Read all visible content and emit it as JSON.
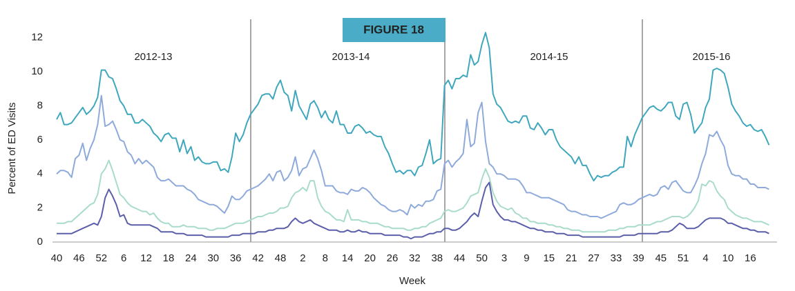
{
  "chart_data": {
    "type": "line",
    "badge": "FIGURE 18",
    "season_labels": [
      "2012-13",
      "2013-14",
      "2014-15",
      "2015-16"
    ],
    "y_label": "Percent of ED Visits",
    "x_label": "Week",
    "ylim": [
      0,
      13
    ],
    "yticks": [
      0,
      2,
      4,
      6,
      8,
      10,
      12
    ],
    "grid": false,
    "categories": [
      "40",
      null,
      null,
      null,
      null,
      null,
      "46",
      null,
      null,
      null,
      null,
      null,
      "52",
      null,
      null,
      null,
      null,
      null,
      "6",
      null,
      null,
      null,
      null,
      null,
      "12",
      null,
      null,
      null,
      null,
      null,
      "18",
      null,
      null,
      null,
      null,
      null,
      "24",
      null,
      null,
      null,
      null,
      null,
      "30",
      null,
      null,
      null,
      null,
      null,
      "36",
      null,
      null,
      null,
      null,
      null,
      "42",
      null,
      null,
      null,
      null,
      null,
      "48",
      null,
      null,
      null,
      null,
      null,
      "2",
      null,
      null,
      null,
      null,
      null,
      "8",
      null,
      null,
      null,
      null,
      null,
      "14",
      null,
      null,
      null,
      null,
      null,
      "20",
      null,
      null,
      null,
      null,
      null,
      "26",
      null,
      null,
      null,
      null,
      null,
      "32",
      null,
      null,
      null,
      null,
      null,
      "38",
      null,
      null,
      null,
      null,
      null,
      "44",
      null,
      null,
      null,
      null,
      null,
      "50",
      null,
      null,
      null,
      null,
      null,
      "3",
      null,
      null,
      null,
      null,
      null,
      "9",
      null,
      null,
      null,
      null,
      null,
      "15",
      null,
      null,
      null,
      null,
      null,
      "21",
      null,
      null,
      null,
      null,
      null,
      "27",
      null,
      null,
      null,
      null,
      null,
      "33",
      null,
      null,
      null,
      null,
      null,
      "39",
      null,
      null,
      null,
      null,
      null,
      "45",
      null,
      null,
      null,
      null,
      null,
      "51",
      null,
      null,
      null,
      null,
      null,
      "4",
      null,
      null,
      null,
      null,
      null,
      "10",
      null,
      null,
      null,
      null,
      null,
      "16",
      null,
      null,
      null,
      null,
      null
    ],
    "series": [
      {
        "color": "#3fa7bd",
        "values": [
          7.2,
          7.6,
          6.9,
          6.9,
          7.0,
          7.3,
          7.6,
          7.9,
          7.5,
          7.7,
          8.0,
          8.5,
          10.1,
          10.1,
          9.7,
          9.6,
          9.0,
          8.3,
          8.0,
          7.5,
          7.5,
          7.0,
          7.0,
          7.2,
          7.0,
          6.8,
          6.4,
          6.2,
          5.9,
          6.3,
          6.4,
          6.1,
          6.1,
          5.3,
          6.0,
          5.2,
          5.6,
          4.8,
          5.0,
          4.7,
          4.6,
          4.6,
          4.7,
          4.7,
          4.2,
          4.3,
          4.1,
          5.0,
          6.4,
          5.9,
          6.3,
          7.0,
          7.5,
          7.8,
          8.1,
          8.6,
          8.7,
          8.7,
          8.4,
          9.1,
          9.5,
          8.8,
          8.6,
          7.7,
          8.9,
          8.0,
          7.6,
          7.2,
          8.1,
          8.3,
          7.9,
          7.3,
          7.7,
          7.2,
          7.0,
          7.7,
          6.9,
          6.9,
          6.4,
          6.4,
          6.8,
          6.9,
          6.7,
          6.4,
          6.5,
          6.3,
          6.2,
          6.2,
          5.6,
          5.2,
          4.6,
          4.1,
          4.2,
          4.0,
          4.2,
          4.2,
          3.9,
          4.4,
          4.5,
          5.2,
          6.0,
          4.6,
          4.8,
          4.9,
          9.2,
          9.5,
          9.0,
          9.6,
          9.6,
          9.8,
          9.7,
          11.0,
          10.4,
          10.6,
          11.6,
          12.3,
          11.4,
          8.7,
          8.1,
          7.9,
          7.5,
          7.1,
          7.0,
          7.1,
          7.0,
          7.4,
          7.4,
          6.7,
          6.6,
          7.0,
          6.7,
          6.3,
          6.6,
          6.6,
          6.0,
          5.6,
          5.4,
          5.2,
          5.0,
          4.6,
          5.0,
          4.5,
          4.5,
          4.0,
          3.6,
          3.9,
          3.8,
          3.9,
          3.9,
          4.1,
          4.2,
          4.4,
          4.4,
          6.2,
          5.6,
          6.3,
          6.8,
          7.3,
          7.6,
          7.9,
          8.0,
          7.8,
          7.7,
          7.9,
          8.2,
          8.2,
          7.4,
          7.2,
          8.1,
          8.2,
          7.5,
          6.4,
          6.7,
          7.0,
          7.9,
          8.4,
          10.1,
          10.2,
          10.1,
          9.9,
          9.1,
          8.1,
          7.7,
          7.4,
          7.0,
          6.8,
          6.9,
          6.6,
          6.5,
          6.6,
          6.2,
          5.7
        ]
      },
      {
        "color": "#8eaadb",
        "values": [
          4.0,
          4.2,
          4.2,
          4.1,
          3.8,
          4.9,
          5.1,
          5.8,
          4.8,
          5.5,
          6.0,
          6.9,
          8.6,
          6.8,
          6.9,
          7.1,
          6.6,
          6.0,
          5.9,
          5.3,
          5.1,
          4.6,
          4.9,
          4.6,
          4.8,
          4.6,
          4.4,
          3.8,
          3.6,
          3.6,
          3.7,
          3.5,
          3.3,
          3.3,
          3.3,
          3.1,
          3.0,
          2.8,
          2.5,
          2.4,
          2.3,
          2.2,
          2.2,
          2.1,
          1.9,
          1.7,
          2.1,
          2.7,
          2.5,
          2.5,
          2.7,
          3.0,
          3.1,
          3.2,
          3.3,
          3.5,
          3.7,
          4.0,
          3.6,
          4.1,
          4.2,
          3.6,
          3.8,
          4.2,
          5.0,
          3.9,
          4.3,
          4.4,
          4.9,
          5.4,
          4.9,
          4.2,
          3.3,
          3.3,
          3.3,
          3.0,
          2.9,
          2.9,
          2.8,
          3.1,
          3.0,
          3.0,
          3.2,
          3.1,
          2.9,
          2.6,
          2.4,
          2.2,
          2.1,
          1.9,
          1.8,
          1.8,
          1.9,
          1.8,
          1.6,
          2.2,
          2.0,
          2.2,
          2.1,
          2.4,
          2.4,
          2.5,
          3.0,
          3.1,
          4.6,
          4.8,
          4.4,
          4.7,
          4.9,
          5.2,
          7.2,
          5.6,
          5.8,
          7.6,
          8.2,
          5.9,
          4.6,
          4.4,
          4.0,
          4.0,
          3.9,
          3.7,
          3.7,
          3.7,
          3.6,
          3.3,
          2.9,
          2.9,
          2.8,
          2.7,
          2.6,
          2.6,
          2.6,
          2.5,
          2.4,
          2.3,
          2.2,
          1.9,
          1.8,
          1.8,
          1.7,
          1.6,
          1.6,
          1.5,
          1.5,
          1.5,
          1.4,
          1.5,
          1.6,
          1.7,
          1.8,
          2.2,
          2.3,
          2.2,
          2.2,
          2.3,
          2.5,
          2.6,
          2.7,
          2.8,
          2.7,
          2.8,
          3.2,
          3.3,
          3.1,
          3.5,
          3.6,
          3.3,
          3.0,
          2.9,
          2.9,
          3.3,
          3.8,
          4.6,
          5.2,
          6.3,
          6.2,
          6.5,
          6.0,
          5.6,
          4.5,
          4.0,
          3.9,
          3.9,
          3.7,
          3.7,
          3.4,
          3.4,
          3.2,
          3.2,
          3.2,
          3.1
        ]
      },
      {
        "color": "#a8dcc9",
        "values": [
          1.1,
          1.1,
          1.1,
          1.2,
          1.2,
          1.4,
          1.6,
          1.8,
          2.0,
          2.2,
          2.3,
          2.8,
          4.0,
          4.3,
          4.8,
          4.2,
          3.5,
          2.8,
          2.6,
          2.3,
          2.1,
          2.0,
          1.9,
          1.8,
          1.8,
          1.6,
          1.7,
          1.4,
          1.2,
          1.1,
          1.1,
          0.9,
          0.9,
          0.9,
          1.0,
          0.9,
          0.9,
          0.9,
          0.8,
          0.8,
          0.8,
          0.7,
          0.7,
          0.8,
          0.8,
          0.8,
          0.9,
          1.0,
          1.1,
          1.1,
          1.1,
          1.2,
          1.3,
          1.4,
          1.5,
          1.5,
          1.6,
          1.7,
          1.7,
          1.8,
          2.0,
          2.0,
          2.1,
          2.6,
          2.9,
          3.0,
          3.2,
          3.0,
          3.6,
          3.6,
          2.6,
          2.1,
          1.8,
          1.7,
          1.5,
          1.3,
          1.3,
          1.2,
          1.9,
          1.3,
          1.3,
          1.3,
          1.2,
          1.2,
          1.1,
          1.1,
          1.1,
          1.0,
          0.9,
          0.9,
          0.8,
          0.8,
          0.8,
          0.8,
          0.7,
          0.7,
          0.8,
          0.8,
          0.9,
          0.9,
          1.1,
          1.2,
          1.3,
          1.4,
          1.8,
          1.9,
          1.8,
          1.8,
          1.9,
          2.0,
          2.3,
          2.7,
          2.8,
          2.9,
          3.7,
          4.3,
          3.8,
          2.9,
          2.4,
          2.1,
          2.0,
          1.9,
          2.0,
          1.7,
          1.6,
          1.4,
          1.4,
          1.2,
          1.2,
          1.1,
          1.1,
          1.1,
          1.0,
          1.0,
          0.9,
          0.9,
          0.8,
          0.8,
          0.7,
          0.7,
          0.7,
          0.6,
          0.6,
          0.6,
          0.6,
          0.6,
          0.6,
          0.6,
          0.7,
          0.7,
          0.7,
          0.8,
          0.8,
          0.9,
          0.9,
          0.9,
          1.0,
          1.0,
          1.0,
          1.0,
          1.1,
          1.2,
          1.2,
          1.3,
          1.4,
          1.5,
          1.5,
          1.5,
          1.4,
          1.5,
          1.7,
          2.0,
          2.4,
          3.4,
          3.3,
          3.6,
          3.5,
          3.0,
          2.7,
          2.5,
          2.0,
          1.8,
          1.6,
          1.5,
          1.4,
          1.4,
          1.3,
          1.2,
          1.2,
          1.2,
          1.1,
          1.0
        ]
      },
      {
        "color": "#5b5fa9",
        "values": [
          0.5,
          0.5,
          0.5,
          0.5,
          0.5,
          0.6,
          0.7,
          0.8,
          0.9,
          1.0,
          1.1,
          1.0,
          1.5,
          2.6,
          3.1,
          2.7,
          2.2,
          1.5,
          1.6,
          1.1,
          1.0,
          1.0,
          1.0,
          1.0,
          1.0,
          1.0,
          0.9,
          0.8,
          0.6,
          0.6,
          0.6,
          0.6,
          0.5,
          0.5,
          0.5,
          0.4,
          0.4,
          0.4,
          0.4,
          0.4,
          0.3,
          0.3,
          0.3,
          0.3,
          0.3,
          0.3,
          0.3,
          0.4,
          0.4,
          0.4,
          0.5,
          0.5,
          0.5,
          0.5,
          0.6,
          0.6,
          0.6,
          0.7,
          0.7,
          0.8,
          0.8,
          0.8,
          0.9,
          1.2,
          1.4,
          1.2,
          1.1,
          1.2,
          1.3,
          1.1,
          1.0,
          0.9,
          0.8,
          0.7,
          0.7,
          0.7,
          0.6,
          0.6,
          0.7,
          0.6,
          0.6,
          0.7,
          0.6,
          0.6,
          0.5,
          0.5,
          0.5,
          0.5,
          0.4,
          0.4,
          0.4,
          0.4,
          0.4,
          0.3,
          0.3,
          0.2,
          0.3,
          0.3,
          0.3,
          0.4,
          0.5,
          0.5,
          0.6,
          0.6,
          0.8,
          0.8,
          0.7,
          0.7,
          0.8,
          1.0,
          1.2,
          1.5,
          1.7,
          1.5,
          2.4,
          3.2,
          3.5,
          2.2,
          1.8,
          1.5,
          1.3,
          1.3,
          1.2,
          1.2,
          1.1,
          1.0,
          0.9,
          0.8,
          0.8,
          0.7,
          0.7,
          0.6,
          0.6,
          0.6,
          0.5,
          0.5,
          0.5,
          0.4,
          0.4,
          0.4,
          0.4,
          0.3,
          0.3,
          0.3,
          0.3,
          0.3,
          0.3,
          0.3,
          0.3,
          0.3,
          0.3,
          0.3,
          0.4,
          0.4,
          0.4,
          0.4,
          0.5,
          0.5,
          0.5,
          0.5,
          0.5,
          0.5,
          0.6,
          0.6,
          0.6,
          0.7,
          0.9,
          1.1,
          1.0,
          0.8,
          0.8,
          0.8,
          0.9,
          1.1,
          1.3,
          1.4,
          1.4,
          1.4,
          1.4,
          1.3,
          1.1,
          1.1,
          1.0,
          0.9,
          0.8,
          0.8,
          0.7,
          0.7,
          0.6,
          0.6,
          0.6,
          0.5
        ]
      }
    ]
  }
}
